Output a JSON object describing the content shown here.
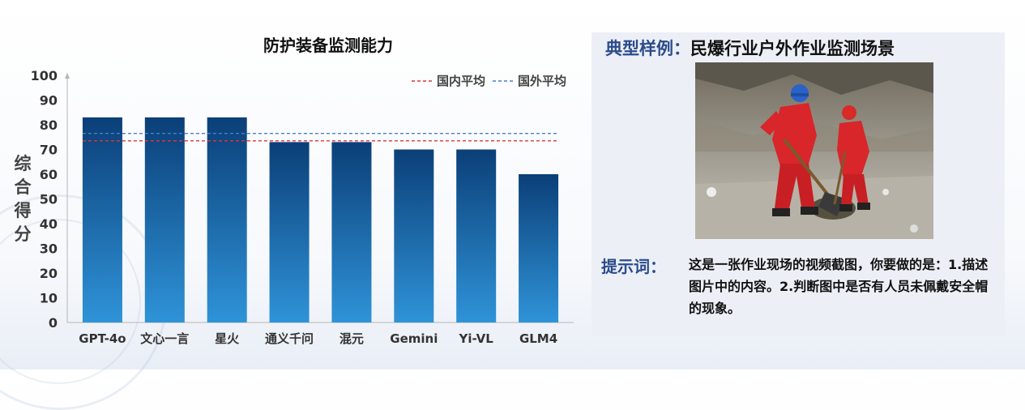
{
  "chart_data": {
    "type": "bar",
    "title": "防护装备监测能力",
    "ylabel": "综合得分",
    "categories": [
      "GPT-4o",
      "文心一言",
      "星火",
      "通义千问",
      "混元",
      "Gemini",
      "Yi-VL",
      "GLM4"
    ],
    "values": [
      83,
      83,
      83,
      73,
      73,
      70,
      70,
      60
    ],
    "ylim": [
      0,
      100
    ],
    "yticks": [
      0,
      10,
      20,
      30,
      40,
      50,
      60,
      70,
      80,
      90,
      100
    ],
    "reference_lines": [
      {
        "name": "国内平均",
        "value": 73.5,
        "color": "#d9363e",
        "style": "dashed"
      },
      {
        "name": "国外平均",
        "value": 76.5,
        "color": "#4a7fc8",
        "style": "dashed"
      }
    ],
    "legend": "top-right",
    "grid": false,
    "bar_color_top": "#0b3f78",
    "bar_color_bottom": "#2f93d8"
  },
  "panel": {
    "title_key": "典型样例：",
    "title_value": "民爆行业户外作业监测场景",
    "prompt_label": "提示词：",
    "prompt_text": "这是一张作业现场的视频截图，你要做的是：1.描述图片中的内容。2.判断图中是否有人员未佩戴安全帽的现象。"
  }
}
